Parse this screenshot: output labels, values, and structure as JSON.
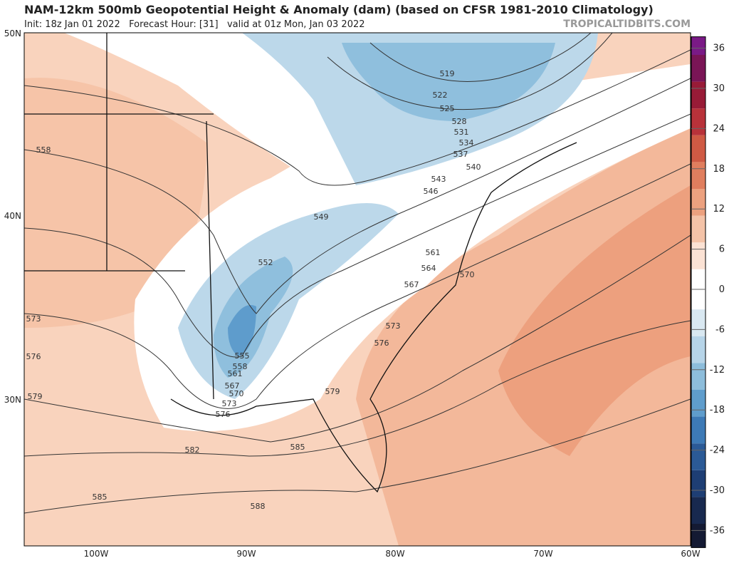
{
  "header": {
    "title": "NAM-12km 500mb Geopotential Height & Anomaly (dam) (based on CFSR 1981-2010 Climatology)",
    "subtitle": "Init: 18z Jan 01 2022   Forecast Hour: [31]   valid at 01z Mon, Jan 03 2022",
    "site": "TROPICALTIDBITS.COM"
  },
  "map": {
    "lat_labels": [
      "50N",
      "40N",
      "30N"
    ],
    "lon_labels": [
      "100W",
      "90W",
      "80W",
      "70W",
      "60W"
    ],
    "contour_labels": [
      "519",
      "522",
      "525",
      "528",
      "531",
      "534",
      "537",
      "540",
      "543",
      "546",
      "549",
      "552",
      "555",
      "558",
      "561",
      "567",
      "570",
      "573",
      "576",
      "561",
      "564",
      "570",
      "567",
      "573",
      "576",
      "579",
      "558",
      "573",
      "576",
      "579",
      "582",
      "585",
      "585",
      "588"
    ]
  },
  "colorbar": {
    "ticks": [
      36,
      30,
      24,
      18,
      12,
      6,
      0,
      -6,
      -12,
      -18,
      -24,
      -30,
      -36
    ]
  }
}
